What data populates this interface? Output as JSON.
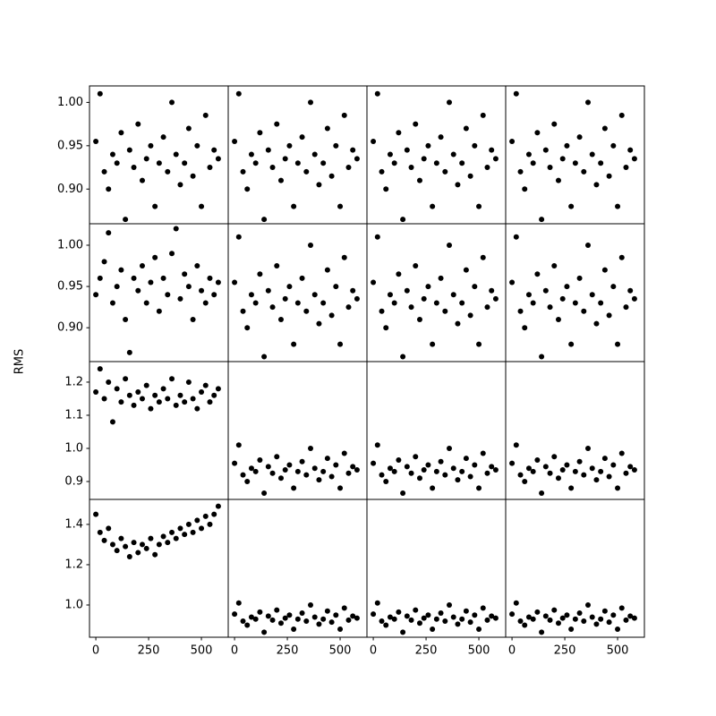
{
  "chart_data": {
    "type": "scatter",
    "ylabel": "RMS",
    "color": "#000000",
    "x": [
      0,
      20,
      40,
      60,
      80,
      100,
      120,
      140,
      160,
      180,
      200,
      220,
      240,
      260,
      280,
      300,
      320,
      340,
      360,
      380,
      400,
      420,
      440,
      460,
      480,
      500,
      520,
      540,
      560,
      580
    ],
    "xlim": [
      -30,
      627
    ],
    "xticks": [
      0,
      250,
      500
    ],
    "rows": [
      {
        "ylim": [
          0.86,
          1.019
        ],
        "yticks": [
          {
            "value": 0.9,
            "label": "0.90"
          },
          {
            "value": 0.95,
            "label": "0.95"
          },
          {
            "value": 1.0,
            "label": "1.00"
          }
        ],
        "panels": [
          [
            0.955,
            1.01,
            0.92,
            0.9,
            0.94,
            0.93,
            0.965,
            0.865,
            0.945,
            0.925,
            0.975,
            0.91,
            0.935,
            0.95,
            0.88,
            0.93,
            0.96,
            0.92,
            1.0,
            0.94,
            0.905,
            0.93,
            0.97,
            0.915,
            0.95,
            0.88,
            0.985,
            0.925,
            0.945,
            0.935
          ],
          [
            0.955,
            1.01,
            0.92,
            0.9,
            0.94,
            0.93,
            0.965,
            0.865,
            0.945,
            0.925,
            0.975,
            0.91,
            0.935,
            0.95,
            0.88,
            0.93,
            0.96,
            0.92,
            1.0,
            0.94,
            0.905,
            0.93,
            0.97,
            0.915,
            0.95,
            0.88,
            0.985,
            0.925,
            0.945,
            0.935
          ],
          [
            0.955,
            1.01,
            0.92,
            0.9,
            0.94,
            0.93,
            0.965,
            0.865,
            0.945,
            0.925,
            0.975,
            0.91,
            0.935,
            0.95,
            0.88,
            0.93,
            0.96,
            0.92,
            1.0,
            0.94,
            0.905,
            0.93,
            0.97,
            0.915,
            0.95,
            0.88,
            0.985,
            0.925,
            0.945,
            0.935
          ],
          [
            0.955,
            1.01,
            0.92,
            0.9,
            0.94,
            0.93,
            0.965,
            0.865,
            0.945,
            0.925,
            0.975,
            0.91,
            0.935,
            0.95,
            0.88,
            0.93,
            0.96,
            0.92,
            1.0,
            0.94,
            0.905,
            0.93,
            0.97,
            0.915,
            0.95,
            0.88,
            0.985,
            0.925,
            0.945,
            0.935
          ]
        ]
      },
      {
        "ylim": [
          0.859,
          1.026
        ],
        "yticks": [
          {
            "value": 0.9,
            "label": "0.90"
          },
          {
            "value": 0.95,
            "label": "0.95"
          },
          {
            "value": 1.0,
            "label": "1.00"
          }
        ],
        "panels": [
          [
            0.94,
            0.96,
            0.98,
            1.015,
            0.93,
            0.95,
            0.97,
            0.91,
            0.87,
            0.96,
            0.945,
            0.975,
            0.93,
            0.955,
            0.985,
            0.92,
            0.96,
            0.94,
            0.99,
            1.02,
            0.935,
            0.965,
            0.95,
            0.91,
            0.975,
            0.945,
            0.93,
            0.96,
            0.94,
            0.955
          ],
          [
            0.955,
            1.01,
            0.92,
            0.9,
            0.94,
            0.93,
            0.965,
            0.865,
            0.945,
            0.925,
            0.975,
            0.91,
            0.935,
            0.95,
            0.88,
            0.93,
            0.96,
            0.92,
            1.0,
            0.94,
            0.905,
            0.93,
            0.97,
            0.915,
            0.95,
            0.88,
            0.985,
            0.925,
            0.945,
            0.935
          ],
          [
            0.955,
            1.01,
            0.92,
            0.9,
            0.94,
            0.93,
            0.965,
            0.865,
            0.945,
            0.925,
            0.975,
            0.91,
            0.935,
            0.95,
            0.88,
            0.93,
            0.96,
            0.92,
            1.0,
            0.94,
            0.905,
            0.93,
            0.97,
            0.915,
            0.95,
            0.88,
            0.985,
            0.925,
            0.945,
            0.935
          ],
          [
            0.955,
            1.01,
            0.92,
            0.9,
            0.94,
            0.93,
            0.965,
            0.865,
            0.945,
            0.925,
            0.975,
            0.91,
            0.935,
            0.95,
            0.88,
            0.93,
            0.96,
            0.92,
            1.0,
            0.94,
            0.905,
            0.93,
            0.97,
            0.915,
            0.95,
            0.88,
            0.985,
            0.925,
            0.945,
            0.935
          ]
        ]
      },
      {
        "ylim": [
          0.846,
          1.262
        ],
        "yticks": [
          0.9,
          {
            "value": 1.0,
            "label": "1.0"
          },
          1.1,
          1.2
        ],
        "panels": [
          [
            1.17,
            1.24,
            1.15,
            1.2,
            1.08,
            1.18,
            1.14,
            1.21,
            1.16,
            1.13,
            1.17,
            1.15,
            1.19,
            1.12,
            1.16,
            1.14,
            1.18,
            1.15,
            1.21,
            1.13,
            1.16,
            1.14,
            1.2,
            1.15,
            1.12,
            1.17,
            1.19,
            1.14,
            1.16,
            1.18
          ],
          [
            0.955,
            1.01,
            0.92,
            0.9,
            0.94,
            0.93,
            0.965,
            0.865,
            0.945,
            0.925,
            0.975,
            0.91,
            0.935,
            0.95,
            0.88,
            0.93,
            0.96,
            0.92,
            1.0,
            0.94,
            0.905,
            0.93,
            0.97,
            0.915,
            0.95,
            0.88,
            0.985,
            0.925,
            0.945,
            0.935
          ],
          [
            0.955,
            1.01,
            0.92,
            0.9,
            0.94,
            0.93,
            0.965,
            0.865,
            0.945,
            0.925,
            0.975,
            0.91,
            0.935,
            0.95,
            0.88,
            0.93,
            0.96,
            0.92,
            1.0,
            0.94,
            0.905,
            0.93,
            0.97,
            0.915,
            0.95,
            0.88,
            0.985,
            0.925,
            0.945,
            0.935
          ],
          [
            0.955,
            1.01,
            0.92,
            0.9,
            0.94,
            0.93,
            0.965,
            0.865,
            0.945,
            0.925,
            0.975,
            0.91,
            0.935,
            0.95,
            0.88,
            0.93,
            0.96,
            0.92,
            1.0,
            0.94,
            0.905,
            0.93,
            0.97,
            0.915,
            0.95,
            0.88,
            0.985,
            0.925,
            0.945,
            0.935
          ]
        ]
      },
      {
        "ylim": [
          0.84,
          1.524
        ],
        "yticks": [
          {
            "value": 1.0,
            "label": "1.0"
          },
          1.2,
          1.4
        ],
        "panels": [
          [
            1.45,
            1.36,
            1.32,
            1.38,
            1.3,
            1.27,
            1.33,
            1.29,
            1.24,
            1.31,
            1.26,
            1.3,
            1.28,
            1.33,
            1.25,
            1.3,
            1.34,
            1.31,
            1.36,
            1.33,
            1.38,
            1.35,
            1.4,
            1.36,
            1.42,
            1.38,
            1.44,
            1.4,
            1.45,
            1.49
          ],
          [
            0.955,
            1.01,
            0.92,
            0.9,
            0.94,
            0.93,
            0.965,
            0.865,
            0.945,
            0.925,
            0.975,
            0.91,
            0.935,
            0.95,
            0.88,
            0.93,
            0.96,
            0.92,
            1.0,
            0.94,
            0.905,
            0.93,
            0.97,
            0.915,
            0.95,
            0.88,
            0.985,
            0.925,
            0.945,
            0.935
          ],
          [
            0.955,
            1.01,
            0.92,
            0.9,
            0.94,
            0.93,
            0.965,
            0.865,
            0.945,
            0.925,
            0.975,
            0.91,
            0.935,
            0.95,
            0.88,
            0.93,
            0.96,
            0.92,
            1.0,
            0.94,
            0.905,
            0.93,
            0.97,
            0.915,
            0.95,
            0.88,
            0.985,
            0.925,
            0.945,
            0.935
          ],
          [
            0.955,
            1.01,
            0.92,
            0.9,
            0.94,
            0.93,
            0.965,
            0.865,
            0.945,
            0.925,
            0.975,
            0.91,
            0.935,
            0.95,
            0.88,
            0.93,
            0.96,
            0.92,
            1.0,
            0.94,
            0.905,
            0.93,
            0.97,
            0.915,
            0.95,
            0.88,
            0.985,
            0.925,
            0.945,
            0.935
          ]
        ]
      }
    ]
  }
}
